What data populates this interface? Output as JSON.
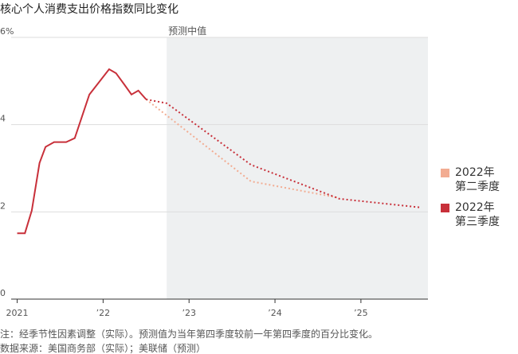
{
  "chart_data": {
    "type": "line",
    "title": "核心个人消费支出价格指数同比变化",
    "xlim": [
      2020.93,
      2025.78
    ],
    "xticks": [
      {
        "value": 2021,
        "label": "2021"
      },
      {
        "value": 2022,
        "label": "’22"
      },
      {
        "value": 2023,
        "label": "’23"
      },
      {
        "value": 2024,
        "label": "’24"
      },
      {
        "value": 2025,
        "label": "’25"
      }
    ],
    "ylim": [
      0,
      6
    ],
    "yticks": [
      0,
      2,
      4,
      {
        "value": 6,
        "label": "6%"
      }
    ],
    "grid": true,
    "shaded_region": {
      "x": [
        2022.74,
        2025.78
      ],
      "label": "预测中值",
      "color": "#eef0f1"
    },
    "series": [
      {
        "color": "#c8303a",
        "style": "solid",
        "x": [
          2021.0,
          2021.09,
          2021.17,
          2021.26,
          2021.33,
          2021.43,
          2021.57,
          2021.67,
          2021.84,
          2022.07,
          2022.15,
          2022.25,
          2022.33,
          2022.41,
          2022.5
        ],
        "values": [
          1.51,
          1.51,
          2.03,
          3.12,
          3.49,
          3.6,
          3.6,
          3.69,
          4.69,
          5.27,
          5.18,
          4.91,
          4.69,
          4.78,
          4.58
        ]
      },
      {
        "name": "2022年\n第二季度",
        "color": "#f2ac92",
        "style": "dotted",
        "x": [
          2022.5,
          2023.72,
          2024.75
        ],
        "values": [
          4.58,
          2.7,
          2.32
        ]
      },
      {
        "name": "2022年\n第三季度",
        "color": "#c8303a",
        "style": "dotted",
        "x": [
          2022.5,
          2022.74,
          2023.72,
          2024.75,
          2025.7
        ],
        "values": [
          4.58,
          4.49,
          3.08,
          2.3,
          2.1
        ]
      }
    ],
    "notes": [
      "注：经季节性因素调整（实际）。预测值为当年第四季度较前一年第四季度的百分比变化。",
      "数据来源：美国商务部（实际）；美联储（预测）"
    ]
  }
}
